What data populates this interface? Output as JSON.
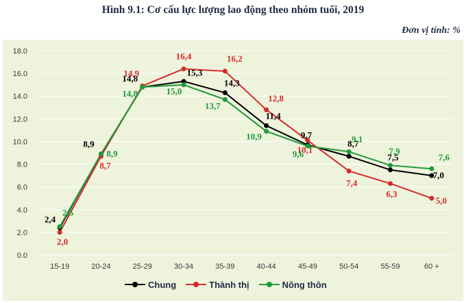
{
  "header": {
    "title": "Hình 9.1: Cơ cấu lực lượng lao động theo nhóm tuổi, 2019",
    "unit": "Đơn vị tính: %"
  },
  "colors": {
    "Chung": "#000000",
    "Thành thị": "#d62b2b",
    "Nông thôn": "#1f9a3a",
    "plot_bg": "#eef3dc",
    "grid": "#ffffff",
    "axis_text": "#3a3a3a"
  },
  "chart_data": {
    "type": "line",
    "title": "Hình 9.1: Cơ cấu lực lượng lao động theo nhóm tuổi, 2019",
    "xlabel": "",
    "ylabel": "",
    "ylim": [
      0,
      18
    ],
    "yticks": [
      "0.0",
      "2.0",
      "4.0",
      "6.0",
      "8.0",
      "10.0",
      "12.0",
      "14.0",
      "16.0",
      "18.0"
    ],
    "categories": [
      "15-19",
      "20-24",
      "25-29",
      "30-34",
      "35-39",
      "40-44",
      "45-49",
      "50-54",
      "55-59",
      "60 +"
    ],
    "grid": true,
    "legend_position": "bottom",
    "series": [
      {
        "name": "Chung",
        "values": [
          2.4,
          8.9,
          14.8,
          15.3,
          14.3,
          11.4,
          9.7,
          8.7,
          7.5,
          7.0
        ],
        "labels": [
          "2,4",
          "8,9",
          "14,8",
          "15,3",
          "14,3",
          "11,4",
          "9,7",
          "8,7",
          "7,5",
          "7,0"
        ]
      },
      {
        "name": "Thành thị",
        "values": [
          2.0,
          8.7,
          14.9,
          16.4,
          16.2,
          12.8,
          10.1,
          7.4,
          6.3,
          5.0
        ],
        "labels": [
          "2,0",
          "8,7",
          "14,9",
          "16,4",
          "16,2",
          "12,8",
          "10,1",
          "7,4",
          "6,3",
          "5,0"
        ]
      },
      {
        "name": "Nông thôn",
        "values": [
          2.5,
          8.9,
          14.8,
          15.0,
          13.7,
          10.9,
          9.6,
          9.1,
          7.9,
          7.6
        ],
        "labels": [
          "2,5",
          "8,9",
          "14,8",
          "15,0",
          "13,7",
          "10,9",
          "9,6",
          "9,1",
          "7,9",
          "7,6"
        ]
      }
    ]
  }
}
